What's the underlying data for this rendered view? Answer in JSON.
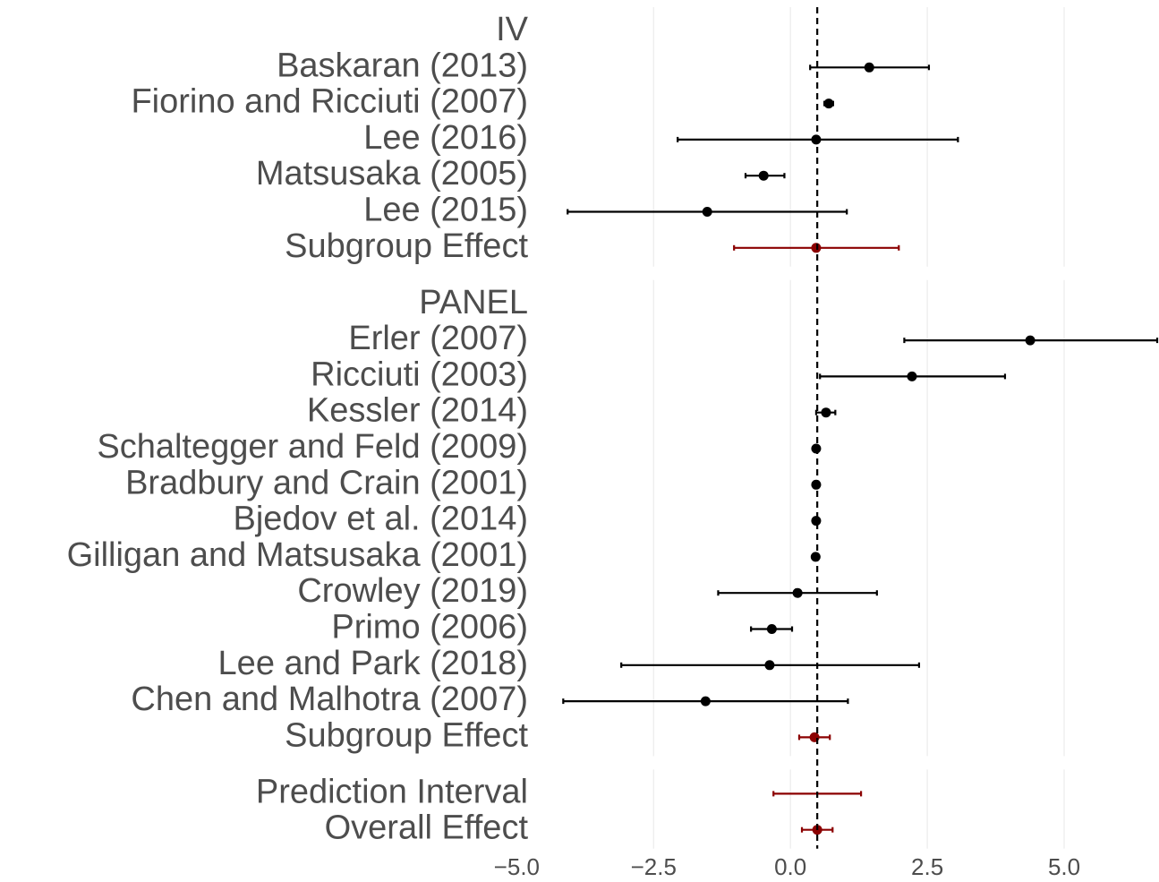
{
  "chart_data": {
    "type": "forest",
    "xlim": [
      -5.3,
      6.7
    ],
    "xticks": [
      {
        "value": -5,
        "label": "−5.0"
      },
      {
        "value": -2.5,
        "label": "−2.5"
      },
      {
        "value": 0,
        "label": "0.0"
      },
      2.5,
      {
        "value": 5,
        "label": "5.0"
      }
    ],
    "grid": true,
    "groups": [
      {
        "name": "IV",
        "rows": [
          {
            "label": "Baskaran (2013)",
            "estimate": 1.44,
            "lower": 0.36,
            "upper": 2.53,
            "color": "#000000"
          },
          {
            "label": "Fiorino and Ricciuti (2007)",
            "estimate": 0.7,
            "lower": 0.62,
            "upper": 0.78,
            "color": "#000000"
          },
          {
            "label": "Lee (2016)",
            "estimate": 0.47,
            "lower": -2.06,
            "upper": 3.06,
            "color": "#000000"
          },
          {
            "label": "Matsusaka (2005)",
            "estimate": -0.49,
            "lower": -0.82,
            "upper": -0.11,
            "color": "#000000"
          },
          {
            "label": "Lee (2015)",
            "estimate": -1.52,
            "lower": -4.07,
            "upper": 1.03,
            "color": "#000000"
          },
          {
            "label": "Subgroup Effect",
            "estimate": 0.47,
            "lower": -1.03,
            "upper": 1.98,
            "color": "#8b0000"
          }
        ]
      },
      {
        "name": "PANEL",
        "rows": [
          {
            "label": "Erler (2007)",
            "estimate": 4.38,
            "lower": 2.08,
            "upper": 6.7,
            "color": "#000000"
          },
          {
            "label": "Ricciuti (2003)",
            "estimate": 2.22,
            "lower": 0.54,
            "upper": 3.92,
            "color": "#000000"
          },
          {
            "label": "Kessler (2014)",
            "estimate": 0.65,
            "lower": 0.47,
            "upper": 0.82,
            "color": "#000000"
          },
          {
            "label": "Schaltegger and Feld (2009)",
            "estimate": 0.47,
            "lower": 0.45,
            "upper": 0.49,
            "color": "#000000"
          },
          {
            "label": "Bradbury and Crain (2001)",
            "estimate": 0.47,
            "lower": 0.45,
            "upper": 0.49,
            "color": "#000000"
          },
          {
            "label": "Bjedov et al. (2014)",
            "estimate": 0.47,
            "lower": 0.45,
            "upper": 0.49,
            "color": "#000000"
          },
          {
            "label": "Gilligan and Matsusaka (2001)",
            "estimate": 0.46,
            "lower": 0.44,
            "upper": 0.48,
            "color": "#000000"
          },
          {
            "label": "Crowley (2019)",
            "estimate": 0.13,
            "lower": -1.32,
            "upper": 1.58,
            "color": "#000000"
          },
          {
            "label": "Primo (2006)",
            "estimate": -0.34,
            "lower": -0.72,
            "upper": 0.03,
            "color": "#000000"
          },
          {
            "label": "Lee and Park (2018)",
            "estimate": -0.38,
            "lower": -3.09,
            "upper": 2.35,
            "color": "#000000"
          },
          {
            "label": "Chen and Malhotra (2007)",
            "estimate": -1.55,
            "lower": -4.15,
            "upper": 1.05,
            "color": "#000000"
          },
          {
            "label": "Subgroup Effect",
            "estimate": 0.44,
            "lower": 0.16,
            "upper": 0.72,
            "color": "#8b0000"
          }
        ]
      },
      {
        "name": null,
        "rows": [
          {
            "label": "Prediction Interval",
            "estimate": null,
            "lower": -0.31,
            "upper": 1.29,
            "color": "#8b0000"
          },
          {
            "label": "Overall Effect",
            "estimate": 0.49,
            "lower": 0.21,
            "upper": 0.77,
            "color": "#8b0000"
          }
        ]
      }
    ]
  }
}
